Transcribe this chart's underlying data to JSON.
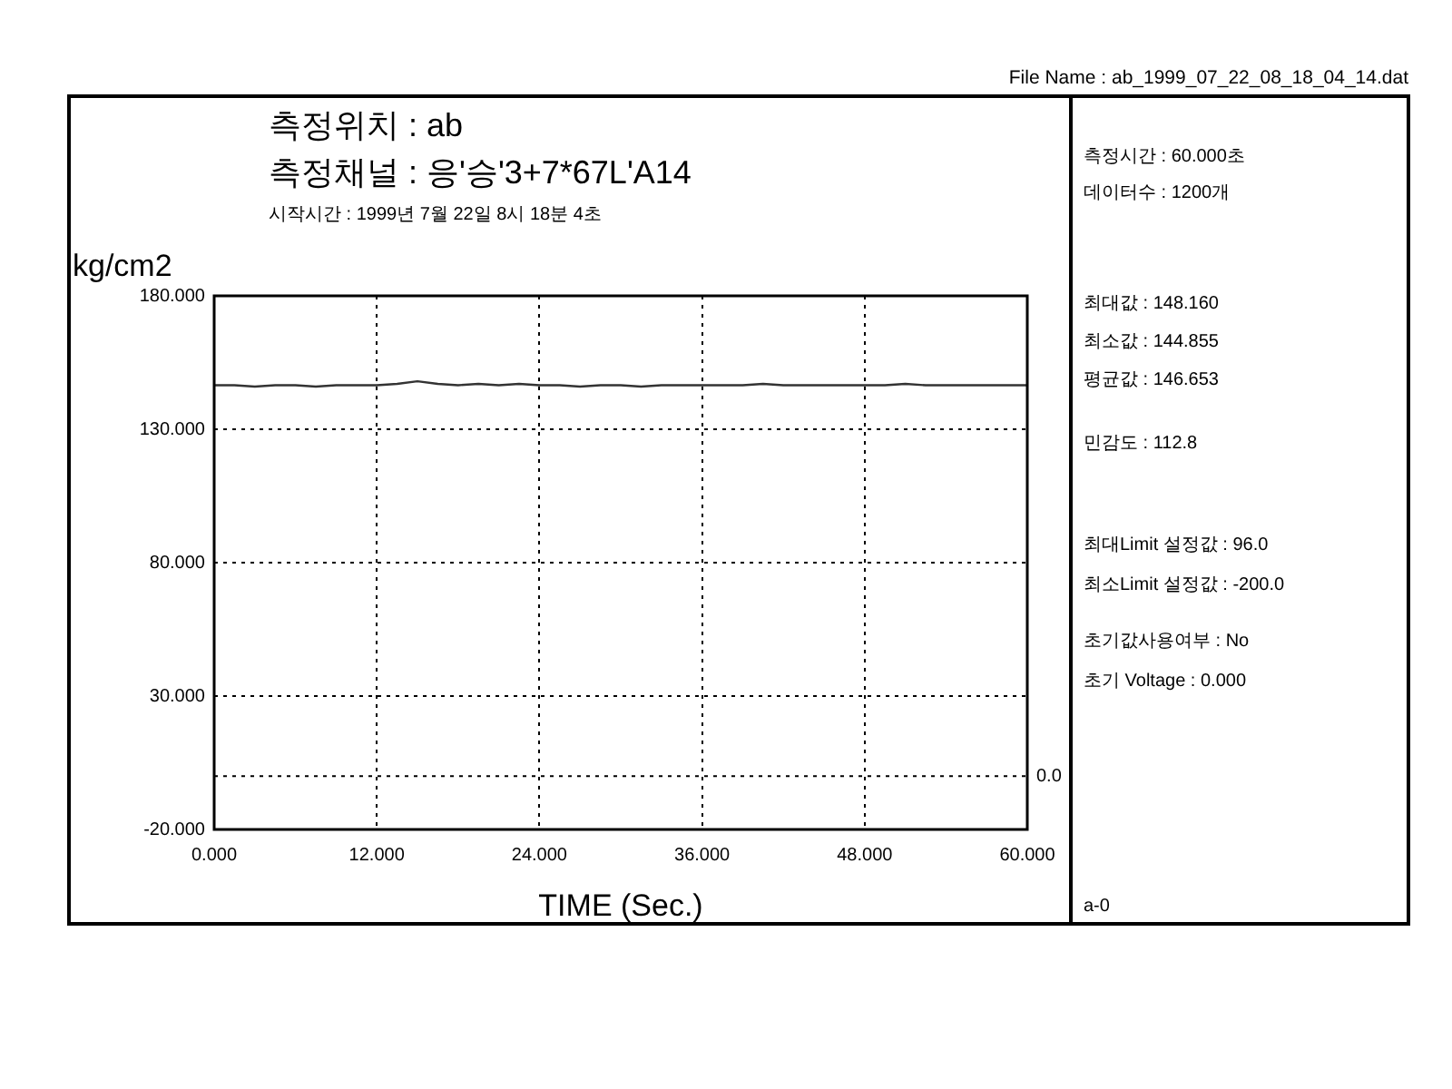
{
  "chart_data": {
    "type": "line",
    "title": "측정위치 : ab",
    "subtitle": "측정채널 : 응'승'3+7*67L'A14",
    "xlabel": "TIME (Sec.)",
    "ylabel": "kg/cm2",
    "x": [
      0,
      1.5,
      3,
      4.5,
      6,
      7.5,
      9,
      10.5,
      12,
      13.5,
      15,
      16.5,
      18,
      19.5,
      21,
      22.5,
      24,
      25.5,
      27,
      28.5,
      30,
      31.5,
      33,
      34.5,
      36,
      37.5,
      39,
      40.5,
      42,
      43.5,
      45,
      46.5,
      48,
      49.5,
      51,
      52.5,
      54,
      55.5,
      57,
      58.5,
      60
    ],
    "series": [
      {
        "color": "#333333",
        "values": [
          146.5,
          146.5,
          146.0,
          146.5,
          146.5,
          146.0,
          146.5,
          146.5,
          146.5,
          147.0,
          148.0,
          147.0,
          146.5,
          147.0,
          146.5,
          147.0,
          146.5,
          146.5,
          146.0,
          146.5,
          146.5,
          146.0,
          146.5,
          146.5,
          146.5,
          146.5,
          146.5,
          147.0,
          146.5,
          146.5,
          146.5,
          146.5,
          146.5,
          146.5,
          147.0,
          146.5,
          146.5,
          146.5,
          146.5,
          146.5,
          146.5
        ]
      }
    ],
    "xlim": [
      0,
      60
    ],
    "ylim": [
      -20,
      180
    ],
    "xticks": [
      {
        "value": 0,
        "label": "0.000"
      },
      {
        "value": 12,
        "label": "12.000"
      },
      {
        "value": 24,
        "label": "24.000"
      },
      {
        "value": 36,
        "label": "36.000"
      },
      {
        "value": 48,
        "label": "48.000"
      },
      {
        "value": 60,
        "label": "60.000"
      }
    ],
    "yticks": [
      {
        "value": -20,
        "label": "-20.000"
      },
      {
        "value": 30,
        "label": "30.000"
      },
      {
        "value": 80,
        "label": "80.000"
      },
      {
        "value": 130,
        "label": "130.000"
      },
      {
        "value": 180,
        "label": "180.000"
      }
    ],
    "grid": true,
    "marker": "none",
    "line_style": "solid",
    "ref_lines": [
      {
        "axis": "y",
        "value": 0,
        "label": "0.0",
        "line_style": "dotted"
      }
    ],
    "annotations": [
      "File Name : ab_1999_07_22_08_18_04_14.dat",
      "시작시간 : 1999년 7월 22일 8시 18분 4초",
      "측정시간 : 60.000초",
      "데이터수 : 1200개",
      "최대값 : 148.160",
      "최소값 : 144.855",
      "평균값 : 146.653",
      "민감도 : 112.8",
      "최대Limit 설정값 : 96.0",
      "최소Limit 설정값 : -200.0",
      "초기값사용여부 : No",
      "초기 Voltage : 0.000",
      "a-0"
    ]
  }
}
